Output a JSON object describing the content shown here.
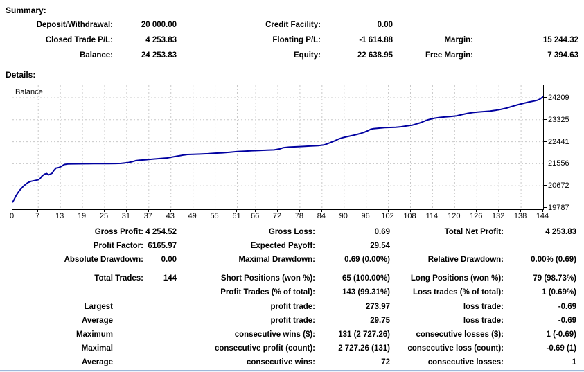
{
  "summary": {
    "heading": "Summary:",
    "rows": [
      {
        "cells": [
          "Deposit/Withdrawal:",
          "20 000.00",
          "Credit Facility:",
          "0.00",
          "",
          ""
        ]
      },
      {
        "cells": [
          "Closed Trade P/L:",
          "4 253.83",
          "Floating P/L:",
          "-1 614.88",
          "Margin:",
          "15 244.32"
        ]
      },
      {
        "cells": [
          "Balance:",
          "24 253.83",
          "Equity:",
          "22 638.95",
          "Free Margin:",
          "7 394.63"
        ]
      }
    ]
  },
  "details": {
    "heading": "Details:"
  },
  "stats": {
    "rows": [
      {
        "cells": [
          "Gross Profit:",
          "4 254.52",
          "Gross Loss:",
          "0.69",
          "Total Net Profit:",
          "4 253.83"
        ]
      },
      {
        "cells": [
          "Profit Factor:",
          "6165.97",
          "Expected Payoff:",
          "29.54",
          "",
          ""
        ]
      },
      {
        "cells": [
          "Absolute Drawdown:",
          "0.00",
          "Maximal Drawdown:",
          "0.69 (0.00%)",
          "Relative Drawdown:",
          "0.00% (0.69)"
        ]
      },
      {
        "cells": [
          "Total Trades:",
          "144",
          "Short Positions (won %):",
          "65 (100.00%)",
          "Long Positions (won %):",
          "79 (98.73%)"
        ]
      },
      {
        "cells": [
          "",
          "",
          "Profit Trades (% of total):",
          "143 (99.31%)",
          "Loss trades (% of total):",
          "1 (0.69%)"
        ]
      },
      {
        "cells": [
          "Largest",
          "",
          "profit trade:",
          "273.97",
          "loss trade:",
          "-0.69"
        ]
      },
      {
        "cells": [
          "Average",
          "",
          "profit trade:",
          "29.75",
          "loss trade:",
          "-0.69"
        ]
      },
      {
        "cells": [
          "Maximum",
          "",
          "consecutive wins ($):",
          "131 (2 727.26)",
          "consecutive losses ($):",
          "1 (-0.69)"
        ]
      },
      {
        "cells": [
          "Maximal",
          "",
          "consecutive profit (count):",
          "2 727.26 (131)",
          "consecutive loss (count):",
          "-0.69 (1)"
        ]
      },
      {
        "cells": [
          "Average",
          "",
          "consecutive wins:",
          "72",
          "consecutive losses:",
          "1"
        ]
      }
    ]
  },
  "chart_data": {
    "type": "line",
    "title": "Balance",
    "series_label": "Balance",
    "line_color": "#0000A0",
    "grid_color": "#c8c8c8",
    "xlim": [
      0,
      144
    ],
    "ylim": [
      19787,
      24209
    ],
    "x_ticks": [
      0,
      7,
      13,
      19,
      25,
      31,
      37,
      43,
      49,
      55,
      61,
      66,
      72,
      78,
      84,
      90,
      96,
      102,
      108,
      114,
      120,
      126,
      132,
      138,
      144
    ],
    "y_ticks": [
      19787,
      20672,
      21556,
      22441,
      23325,
      24209
    ],
    "points": [
      [
        0,
        20000
      ],
      [
        0.5,
        20140
      ],
      [
        1,
        20280
      ],
      [
        1.5,
        20400
      ],
      [
        2,
        20500
      ],
      [
        2.5,
        20580
      ],
      [
        3,
        20660
      ],
      [
        3.5,
        20720
      ],
      [
        4,
        20780
      ],
      [
        4.5,
        20820
      ],
      [
        5,
        20850
      ],
      [
        6,
        20880
      ],
      [
        7,
        20910
      ],
      [
        7.5,
        20960
      ],
      [
        8,
        21060
      ],
      [
        8.7,
        21140
      ],
      [
        9.3,
        21160
      ],
      [
        9.8,
        21110
      ],
      [
        10.3,
        21140
      ],
      [
        10.8,
        21180
      ],
      [
        11.2,
        21280
      ],
      [
        11.8,
        21380
      ],
      [
        12.5,
        21400
      ],
      [
        13,
        21430
      ],
      [
        13.5,
        21470
      ],
      [
        14,
        21520
      ],
      [
        15,
        21545
      ],
      [
        16,
        21550
      ],
      [
        18,
        21552
      ],
      [
        20,
        21555
      ],
      [
        22,
        21558
      ],
      [
        24,
        21560
      ],
      [
        26,
        21562
      ],
      [
        28,
        21565
      ],
      [
        29.5,
        21570
      ],
      [
        30.5,
        21590
      ],
      [
        31.5,
        21605
      ],
      [
        32.5,
        21640
      ],
      [
        33.5,
        21680
      ],
      [
        34.5,
        21700
      ],
      [
        36,
        21715
      ],
      [
        38,
        21740
      ],
      [
        40,
        21765
      ],
      [
        42,
        21790
      ],
      [
        43.5,
        21830
      ],
      [
        45,
        21870
      ],
      [
        46.5,
        21910
      ],
      [
        47.5,
        21928
      ],
      [
        49,
        21935
      ],
      [
        51,
        21945
      ],
      [
        53,
        21960
      ],
      [
        55,
        21980
      ],
      [
        57,
        21995
      ],
      [
        59,
        22020
      ],
      [
        61,
        22045
      ],
      [
        63,
        22062
      ],
      [
        65,
        22078
      ],
      [
        67,
        22090
      ],
      [
        69,
        22100
      ],
      [
        71,
        22112
      ],
      [
        72.5,
        22150
      ],
      [
        73.5,
        22200
      ],
      [
        75,
        22222
      ],
      [
        77,
        22238
      ],
      [
        79,
        22252
      ],
      [
        81,
        22268
      ],
      [
        83,
        22285
      ],
      [
        84.5,
        22310
      ],
      [
        85.5,
        22360
      ],
      [
        86.5,
        22420
      ],
      [
        87.5,
        22480
      ],
      [
        88.5,
        22550
      ],
      [
        89.5,
        22600
      ],
      [
        90.5,
        22635
      ],
      [
        91.5,
        22665
      ],
      [
        92.5,
        22700
      ],
      [
        93.5,
        22735
      ],
      [
        94.5,
        22775
      ],
      [
        95.5,
        22825
      ],
      [
        96.5,
        22885
      ],
      [
        97.2,
        22940
      ],
      [
        98,
        22965
      ],
      [
        99,
        22980
      ],
      [
        100,
        22995
      ],
      [
        101,
        23005
      ],
      [
        102.5,
        23012
      ],
      [
        104,
        23020
      ],
      [
        105.5,
        23040
      ],
      [
        107,
        23075
      ],
      [
        108.5,
        23105
      ],
      [
        109.5,
        23150
      ],
      [
        110.5,
        23195
      ],
      [
        111.5,
        23250
      ],
      [
        112.5,
        23310
      ],
      [
        113.5,
        23350
      ],
      [
        114.5,
        23385
      ],
      [
        116,
        23415
      ],
      [
        117.5,
        23435
      ],
      [
        119,
        23455
      ],
      [
        120.5,
        23480
      ],
      [
        122,
        23530
      ],
      [
        123.5,
        23580
      ],
      [
        125,
        23615
      ],
      [
        126.5,
        23635
      ],
      [
        128,
        23652
      ],
      [
        129.5,
        23670
      ],
      [
        131,
        23700
      ],
      [
        132.5,
        23740
      ],
      [
        134,
        23790
      ],
      [
        135.5,
        23855
      ],
      [
        137,
        23920
      ],
      [
        138.5,
        23975
      ],
      [
        140,
        24030
      ],
      [
        141.5,
        24075
      ],
      [
        142.5,
        24110
      ],
      [
        143.2,
        24160
      ],
      [
        144,
        24250
      ]
    ]
  }
}
